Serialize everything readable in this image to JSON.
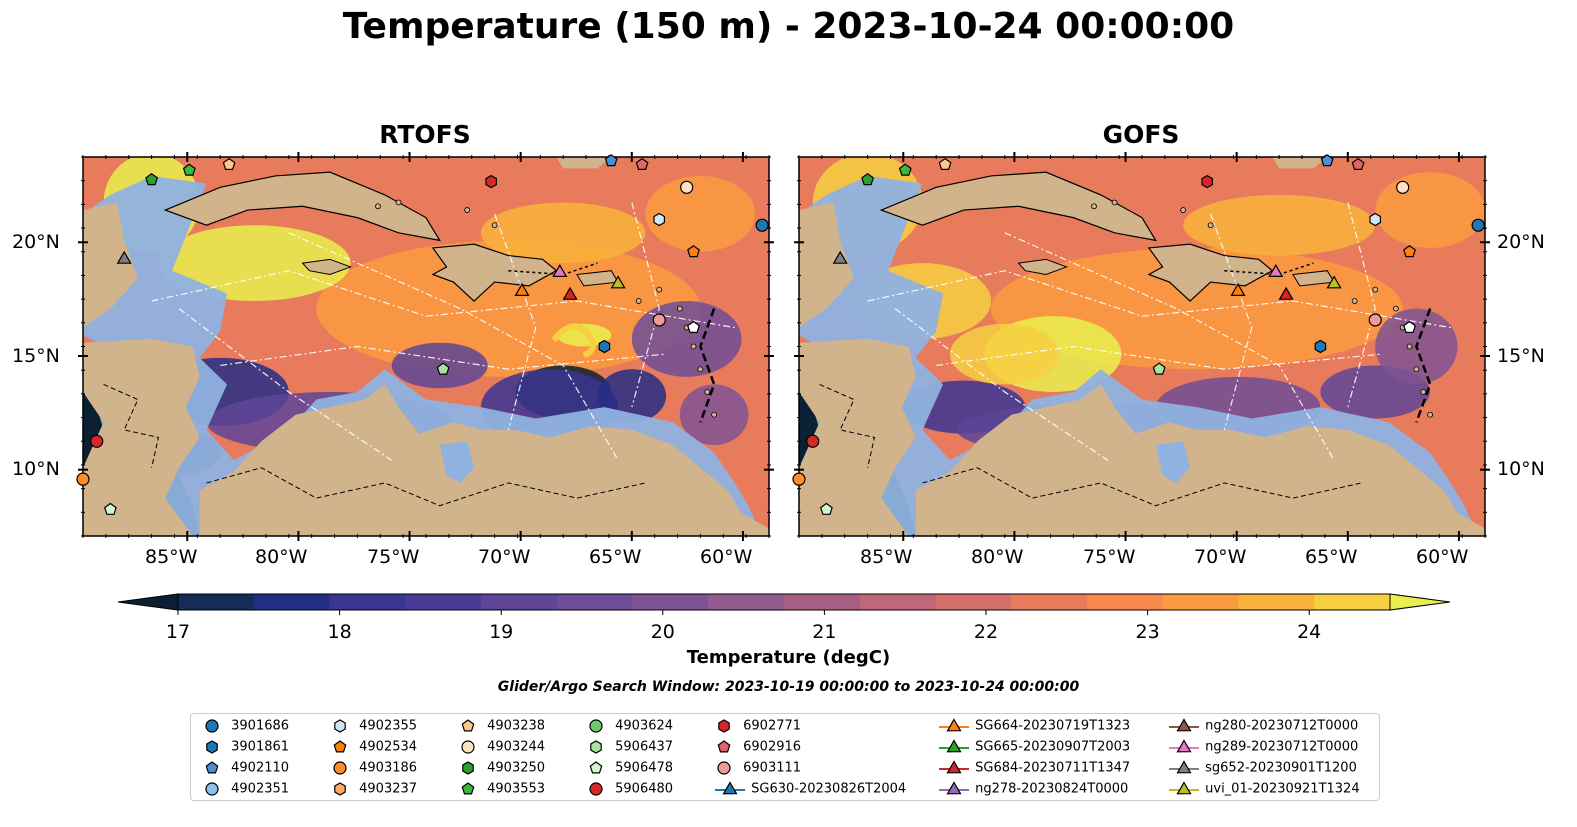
{
  "title": "Temperature (150 m) - 2023-10-24 00:00:00",
  "panels": [
    {
      "title": "RTOFS"
    },
    {
      "title": "GOFS"
    }
  ],
  "axes": {
    "x_ticks": [
      "85°W",
      "80°W",
      "75°W",
      "70°W",
      "65°W",
      "60°W"
    ],
    "y_ticks": [
      "20°N",
      "15°N",
      "10°N"
    ]
  },
  "colorbar": {
    "label": "Temperature (degC)",
    "min": 17,
    "max": 24.5,
    "step": 0.5,
    "ticks": [
      "17",
      "18",
      "19",
      "20",
      "21",
      "22",
      "23",
      "24"
    ],
    "colors": [
      "#0b2133",
      "#142c56",
      "#252e85",
      "#3b3592",
      "#4a3c96",
      "#5e4597",
      "#6e4d96",
      "#7f5393",
      "#935a8c",
      "#a85f85",
      "#c0677b",
      "#d56f6d",
      "#e77b5c",
      "#f6894b",
      "#fb9b40",
      "#f9b33b",
      "#f6d041",
      "#e9f04e"
    ]
  },
  "search_window": "Glider/Argo Search Window: 2023-10-19 00:00:00 to 2023-10-24 00:00:00",
  "legend": {
    "columns": [
      [
        {
          "label": "3901686",
          "marker": "circle",
          "color": "#1f77b4"
        },
        {
          "label": "3901861",
          "marker": "hexagon",
          "color": "#1f77b4"
        },
        {
          "label": "4902110",
          "marker": "pentagon",
          "color": "#4a90d9"
        },
        {
          "label": "4902351",
          "marker": "circle",
          "color": "#8fc1ee"
        }
      ],
      [
        {
          "label": "4902355",
          "marker": "hexagon",
          "color": "#cfe6f7"
        },
        {
          "label": "4902534",
          "marker": "pentagon",
          "color": "#ff7f0e"
        },
        {
          "label": "4903186",
          "marker": "circle",
          "color": "#ff8c2a"
        },
        {
          "label": "4903237",
          "marker": "hexagon",
          "color": "#ffad66"
        }
      ],
      [
        {
          "label": "4903238",
          "marker": "pentagon",
          "color": "#ffc78f"
        },
        {
          "label": "4903244",
          "marker": "circle",
          "color": "#ffe2c4"
        },
        {
          "label": "4903250",
          "marker": "hexagon",
          "color": "#2ca02c"
        },
        {
          "label": "4903553",
          "marker": "pentagon",
          "color": "#3cb83c"
        }
      ],
      [
        {
          "label": "4903624",
          "marker": "circle",
          "color": "#6bcc6b"
        },
        {
          "label": "5906437",
          "marker": "hexagon",
          "color": "#a6e3a1"
        },
        {
          "label": "5906478",
          "marker": "pentagon",
          "color": "#d5f5cf"
        },
        {
          "label": "5906480",
          "marker": "circle",
          "color": "#d62728"
        }
      ],
      [
        {
          "label": "6902771",
          "marker": "hexagon",
          "color": "#d62728"
        },
        {
          "label": "6902916",
          "marker": "pentagon",
          "color": "#e0666b"
        },
        {
          "label": "6903111",
          "marker": "circle",
          "color": "#f0999a"
        },
        {
          "label": "SG630-20230826T2004",
          "marker": "triangle",
          "color": "#1f77b4",
          "line": true
        }
      ],
      [
        {
          "label": "SG664-20230719T1323",
          "marker": "triangle",
          "color": "#ff7f0e",
          "line": true
        },
        {
          "label": "SG665-20230907T2003",
          "marker": "triangle",
          "color": "#2ca02c",
          "line": true
        },
        {
          "label": "SG684-20230711T1347",
          "marker": "triangle",
          "color": "#d62728",
          "line": true
        },
        {
          "label": "ng278-20230824T0000",
          "marker": "triangle",
          "color": "#9467bd",
          "line": true
        }
      ],
      [
        {
          "label": "ng280-20230712T0000",
          "marker": "triangle",
          "color": "#8c564b",
          "line": true
        },
        {
          "label": "ng289-20230712T0000",
          "marker": "triangle",
          "color": "#e377c2",
          "line": true
        },
        {
          "label": "sg652-20230901T1200",
          "marker": "triangle",
          "color": "#7f7f7f",
          "line": true
        },
        {
          "label": "uvi_01-20230921T1324",
          "marker": "triangle",
          "color": "#bcbd22",
          "line": true
        }
      ]
    ]
  },
  "map_colors": {
    "land": "#d2b48c",
    "shelf": "#8fb2e0",
    "pacific": "#0b2133"
  }
}
